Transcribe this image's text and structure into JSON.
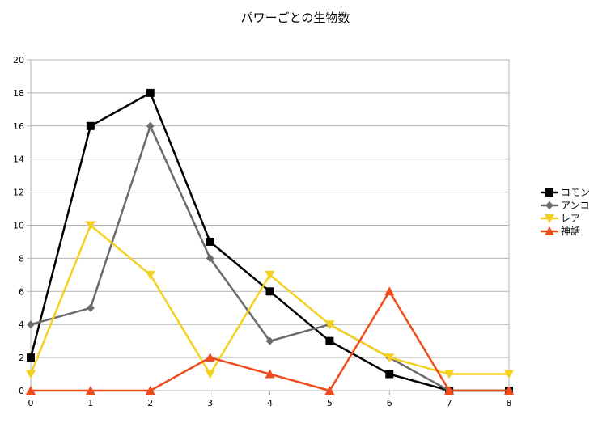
{
  "chart_data": {
    "type": "line",
    "title": "パワーごとの生物数",
    "x": [
      0,
      1,
      2,
      3,
      4,
      5,
      6,
      7,
      8
    ],
    "xlim": [
      0,
      8
    ],
    "ylim": [
      0,
      20
    ],
    "yticks": [
      0,
      2,
      4,
      6,
      8,
      10,
      12,
      14,
      16,
      18,
      20
    ],
    "grid": true,
    "legend_position": "right",
    "series": [
      {
        "name": "コモン",
        "color": "#000000",
        "marker": "square",
        "values": [
          2,
          16,
          18,
          9,
          6,
          3,
          1,
          0,
          0
        ]
      },
      {
        "name": "アンコ",
        "color": "#6b6b6b",
        "marker": "diamond",
        "values": [
          4,
          5,
          16,
          8,
          3,
          4,
          2,
          0,
          0
        ]
      },
      {
        "name": "レア",
        "color": "#f5d11f",
        "marker": "triangle-down",
        "values": [
          1,
          10,
          7,
          1,
          7,
          4,
          2,
          1,
          1
        ]
      },
      {
        "name": "神話",
        "color": "#ef4b1c",
        "marker": "triangle-up",
        "values": [
          0,
          0,
          0,
          2,
          1,
          0,
          6,
          0,
          0
        ]
      }
    ]
  }
}
